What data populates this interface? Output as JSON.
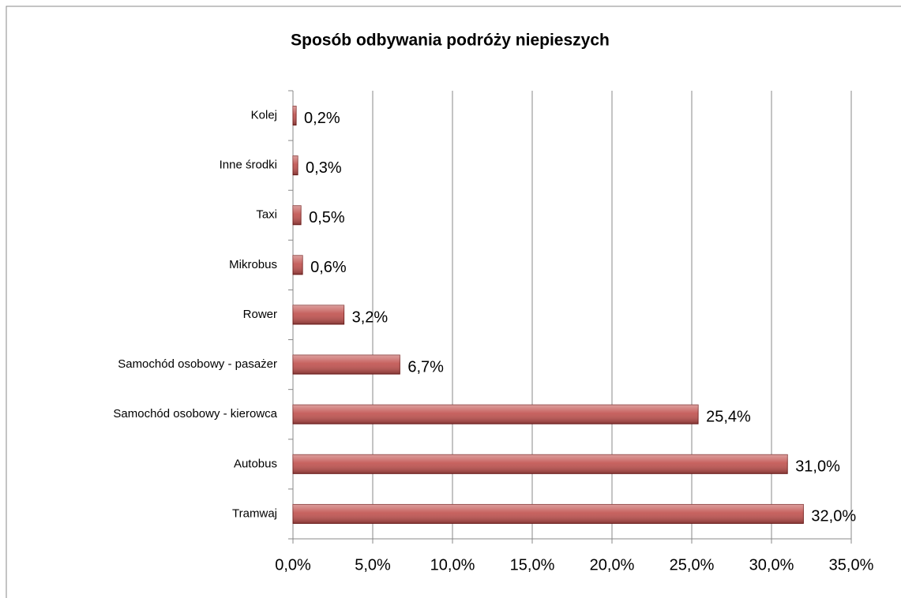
{
  "chart_data": {
    "type": "bar",
    "orientation": "horizontal",
    "title": "Sposób odbywania podróży niepieszych",
    "categories": [
      "Kolej",
      "Inne środki",
      "Taxi",
      "Mikrobus",
      "Rower",
      "Samochód osobowy - pasażer",
      "Samochód osobowy - kierowca",
      "Autobus",
      "Tramwaj"
    ],
    "values": [
      0.2,
      0.3,
      0.5,
      0.6,
      3.2,
      6.7,
      25.4,
      31.0,
      32.0
    ],
    "value_labels": [
      "0,2%",
      "0,3%",
      "0,5%",
      "0,6%",
      "3,2%",
      "6,7%",
      "25,4%",
      "31,0%",
      "32,0%"
    ],
    "color": "#c0504d",
    "xlim": [
      0,
      35
    ],
    "xticks": [
      {
        "value": 0,
        "label": "0,0%"
      },
      {
        "value": 5,
        "label": "5,0%"
      },
      {
        "value": 10,
        "label": "10,0%"
      },
      {
        "value": 15,
        "label": "15,0%"
      },
      {
        "value": 20,
        "label": "20,0%"
      },
      {
        "value": 25,
        "label": "25,0%"
      },
      {
        "value": 30,
        "label": "30,0%"
      },
      {
        "value": 35,
        "label": "35,0%"
      }
    ],
    "grid": true
  }
}
